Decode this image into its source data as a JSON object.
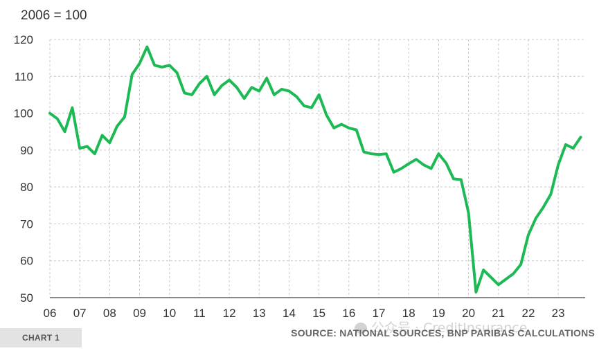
{
  "chart_data": {
    "type": "line",
    "unit_label": "2006 = 100",
    "x_ticks": [
      "06",
      "07",
      "08",
      "09",
      "10",
      "11",
      "12",
      "13",
      "14",
      "15",
      "16",
      "17",
      "18",
      "19",
      "20",
      "21",
      "22",
      "23"
    ],
    "x_start": 2006.0,
    "x_end": 2023.9,
    "ylim": [
      50,
      120
    ],
    "y_ticks": [
      50,
      60,
      70,
      80,
      90,
      100,
      110,
      120
    ],
    "grid": true,
    "line_color": "#1db954",
    "series": [
      {
        "x": [
          2006.0,
          2006.25,
          2006.5,
          2006.75,
          2007.0,
          2007.25,
          2007.5,
          2007.75,
          2008.0,
          2008.25,
          2008.5,
          2008.75,
          2009.0,
          2009.25,
          2009.5,
          2009.75,
          2010.0,
          2010.25,
          2010.5,
          2010.75,
          2011.0,
          2011.25,
          2011.5,
          2011.75,
          2012.0,
          2012.25,
          2012.5,
          2012.75,
          2013.0,
          2013.25,
          2013.5,
          2013.75,
          2014.0,
          2014.25,
          2014.5,
          2014.75,
          2015.0,
          2015.25,
          2015.5,
          2015.75,
          2016.0,
          2016.25,
          2016.5,
          2016.75,
          2017.0,
          2017.25,
          2017.5,
          2017.75,
          2018.0,
          2018.25,
          2018.5,
          2018.75,
          2019.0,
          2019.25,
          2019.5,
          2019.75,
          2020.0,
          2020.25,
          2020.5,
          2020.75,
          2021.0,
          2021.25,
          2021.5,
          2021.75,
          2022.0,
          2022.25,
          2022.5,
          2022.75,
          2023.0,
          2023.25,
          2023.5,
          2023.75
        ],
        "values": [
          100,
          98.5,
          95,
          101.5,
          90.5,
          91,
          89,
          94,
          92,
          96.5,
          99,
          110.5,
          113.5,
          118,
          113,
          112.5,
          113,
          111,
          105.5,
          105,
          108,
          110,
          105,
          107.5,
          109,
          107,
          104,
          107,
          106,
          109.5,
          105,
          106.5,
          106,
          104.5,
          102,
          101.5,
          105,
          99.5,
          96,
          97,
          96,
          95.5,
          89.5,
          89,
          88.8,
          89,
          84,
          85,
          86.3,
          87.5,
          86,
          85,
          89,
          86.5,
          82.2,
          82,
          73,
          51.5,
          57.5,
          55.5,
          53.5,
          55,
          56.5,
          59,
          67,
          71.5,
          74.5,
          78,
          86,
          91.5,
          90.5,
          93.5
        ]
      }
    ]
  },
  "footer": {
    "chart_tag": "CHART 1",
    "source": "SOURCE: NATIONAL SOURCES, BNP PARIBAS CALCULATIONS",
    "watermark": "公众号 · CreditInsurance"
  }
}
